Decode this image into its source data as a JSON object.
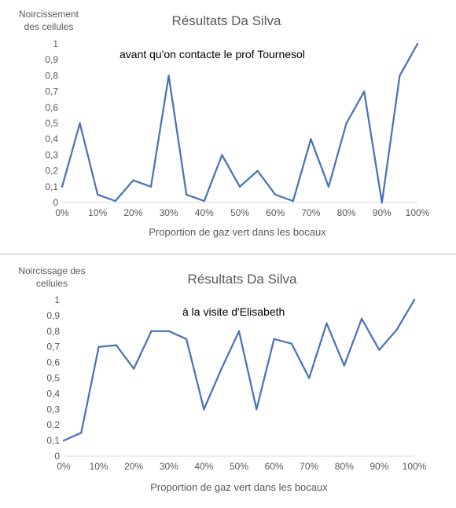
{
  "chart_data": [
    {
      "type": "line",
      "title": "Résultats Da Silva",
      "ylabel": [
        "Noircissement",
        "des cellules"
      ],
      "xlabel": "Proportion de gaz vert dans les bocaux",
      "annotation": "avant qu'on contacte le prof Tournesol",
      "x": [
        0,
        5,
        10,
        15,
        20,
        25,
        30,
        35,
        40,
        45,
        50,
        55,
        60,
        65,
        70,
        75,
        80,
        85,
        90,
        95,
        100
      ],
      "xticks": [
        "0%",
        "10%",
        "20%",
        "30%",
        "40%",
        "50%",
        "60%",
        "70%",
        "80%",
        "90%",
        "100%"
      ],
      "yticks": [
        "0",
        "0,1",
        "0,2",
        "0,3",
        "0,4",
        "0,5",
        "0,6",
        "0,7",
        "0,8",
        "0,9",
        "1"
      ],
      "xlim": [
        0,
        100
      ],
      "ylim": [
        0,
        1
      ],
      "grid": false,
      "line_color": "#4a72b8",
      "series": [
        {
          "values": [
            0.1,
            0.5,
            0.05,
            0.01,
            0.14,
            0.1,
            0.8,
            0.05,
            0.01,
            0.3,
            0.1,
            0.2,
            0.05,
            0.01,
            0.4,
            0.1,
            0.5,
            0.7,
            0.0,
            0.8,
            1.0
          ]
        }
      ]
    },
    {
      "type": "line",
      "title": "Résultats Da Silva",
      "ylabel": [
        "Noircissage des",
        "cellules"
      ],
      "xlabel": "Proportion de gaz vert dans les bocaux",
      "annotation": "à la visite d'Elisabeth",
      "x": [
        0,
        5,
        10,
        15,
        20,
        25,
        30,
        35,
        40,
        45,
        50,
        55,
        60,
        65,
        70,
        75,
        80,
        85,
        90,
        95,
        100
      ],
      "xticks": [
        "0%",
        "10%",
        "20%",
        "30%",
        "40%",
        "50%",
        "60%",
        "70%",
        "80%",
        "90%",
        "100%"
      ],
      "yticks": [
        "0",
        "0,1",
        "0,2",
        "0,3",
        "0,4",
        "0,5",
        "0,6",
        "0,7",
        "0,8",
        "0,9",
        "1"
      ],
      "xlim": [
        0,
        100
      ],
      "ylim": [
        0,
        1
      ],
      "grid": false,
      "line_color": "#4a72b8",
      "series": [
        {
          "values": [
            0.1,
            0.15,
            0.7,
            0.71,
            0.56,
            0.8,
            0.8,
            0.75,
            0.3,
            0.56,
            0.8,
            0.3,
            0.75,
            0.72,
            0.5,
            0.85,
            0.58,
            0.88,
            0.68,
            0.81,
            1.0
          ]
        }
      ]
    }
  ]
}
